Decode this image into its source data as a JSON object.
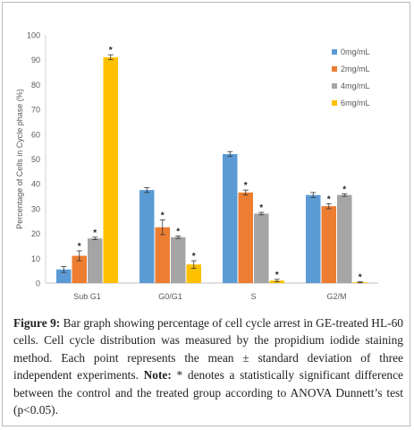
{
  "chart_data": {
    "type": "bar",
    "title": "",
    "xlabel": "",
    "ylabel": "Percentage of Cells in Cycle phase (%)",
    "ylim": [
      0,
      100
    ],
    "yticks": [
      0,
      10,
      20,
      30,
      40,
      50,
      60,
      70,
      80,
      90,
      100
    ],
    "categories": [
      "Sub G1",
      "G0/G1",
      "S",
      "G2/M"
    ],
    "series": [
      {
        "name": "0mg/mL",
        "color": "#5b9bd5",
        "values": [
          5.5,
          37.5,
          52,
          35.5
        ],
        "errors": [
          1.2,
          1.0,
          1.0,
          1.0
        ],
        "significant": [
          false,
          false,
          false,
          false
        ]
      },
      {
        "name": "2mg/mL",
        "color": "#ed7d31",
        "values": [
          11,
          22.5,
          36.5,
          31
        ],
        "errors": [
          2.0,
          3.0,
          1.0,
          1.0
        ],
        "significant": [
          true,
          true,
          true,
          true
        ]
      },
      {
        "name": "4mg/mL",
        "color": "#a5a5a5",
        "values": [
          18,
          18.5,
          28,
          35.5
        ],
        "errors": [
          0.5,
          0.5,
          0.5,
          0.5
        ],
        "significant": [
          true,
          true,
          true,
          true
        ]
      },
      {
        "name": "6mg/mL",
        "color": "#ffc000",
        "values": [
          91,
          7.5,
          1,
          0.3
        ],
        "errors": [
          1.0,
          1.5,
          0.5,
          0.2
        ],
        "significant": [
          true,
          true,
          true,
          true
        ]
      }
    ],
    "significance_marker": "*",
    "legend_position": "top-right",
    "grid": false
  },
  "caption": {
    "label": "Figure 9:",
    "text": " Bar graph showing percentage of cell cycle arrest in GE-treated HL-60 cells. Cell cycle distribution was measured by the propidium iodide staining method. Each point represents the mean ± standard deviation of three independent experiments. ",
    "note_label": "Note:",
    "note_text": " * denotes a statistically significant difference between the control and the treated group according to ANOVA Dunnett’s test (p<0.05)."
  }
}
